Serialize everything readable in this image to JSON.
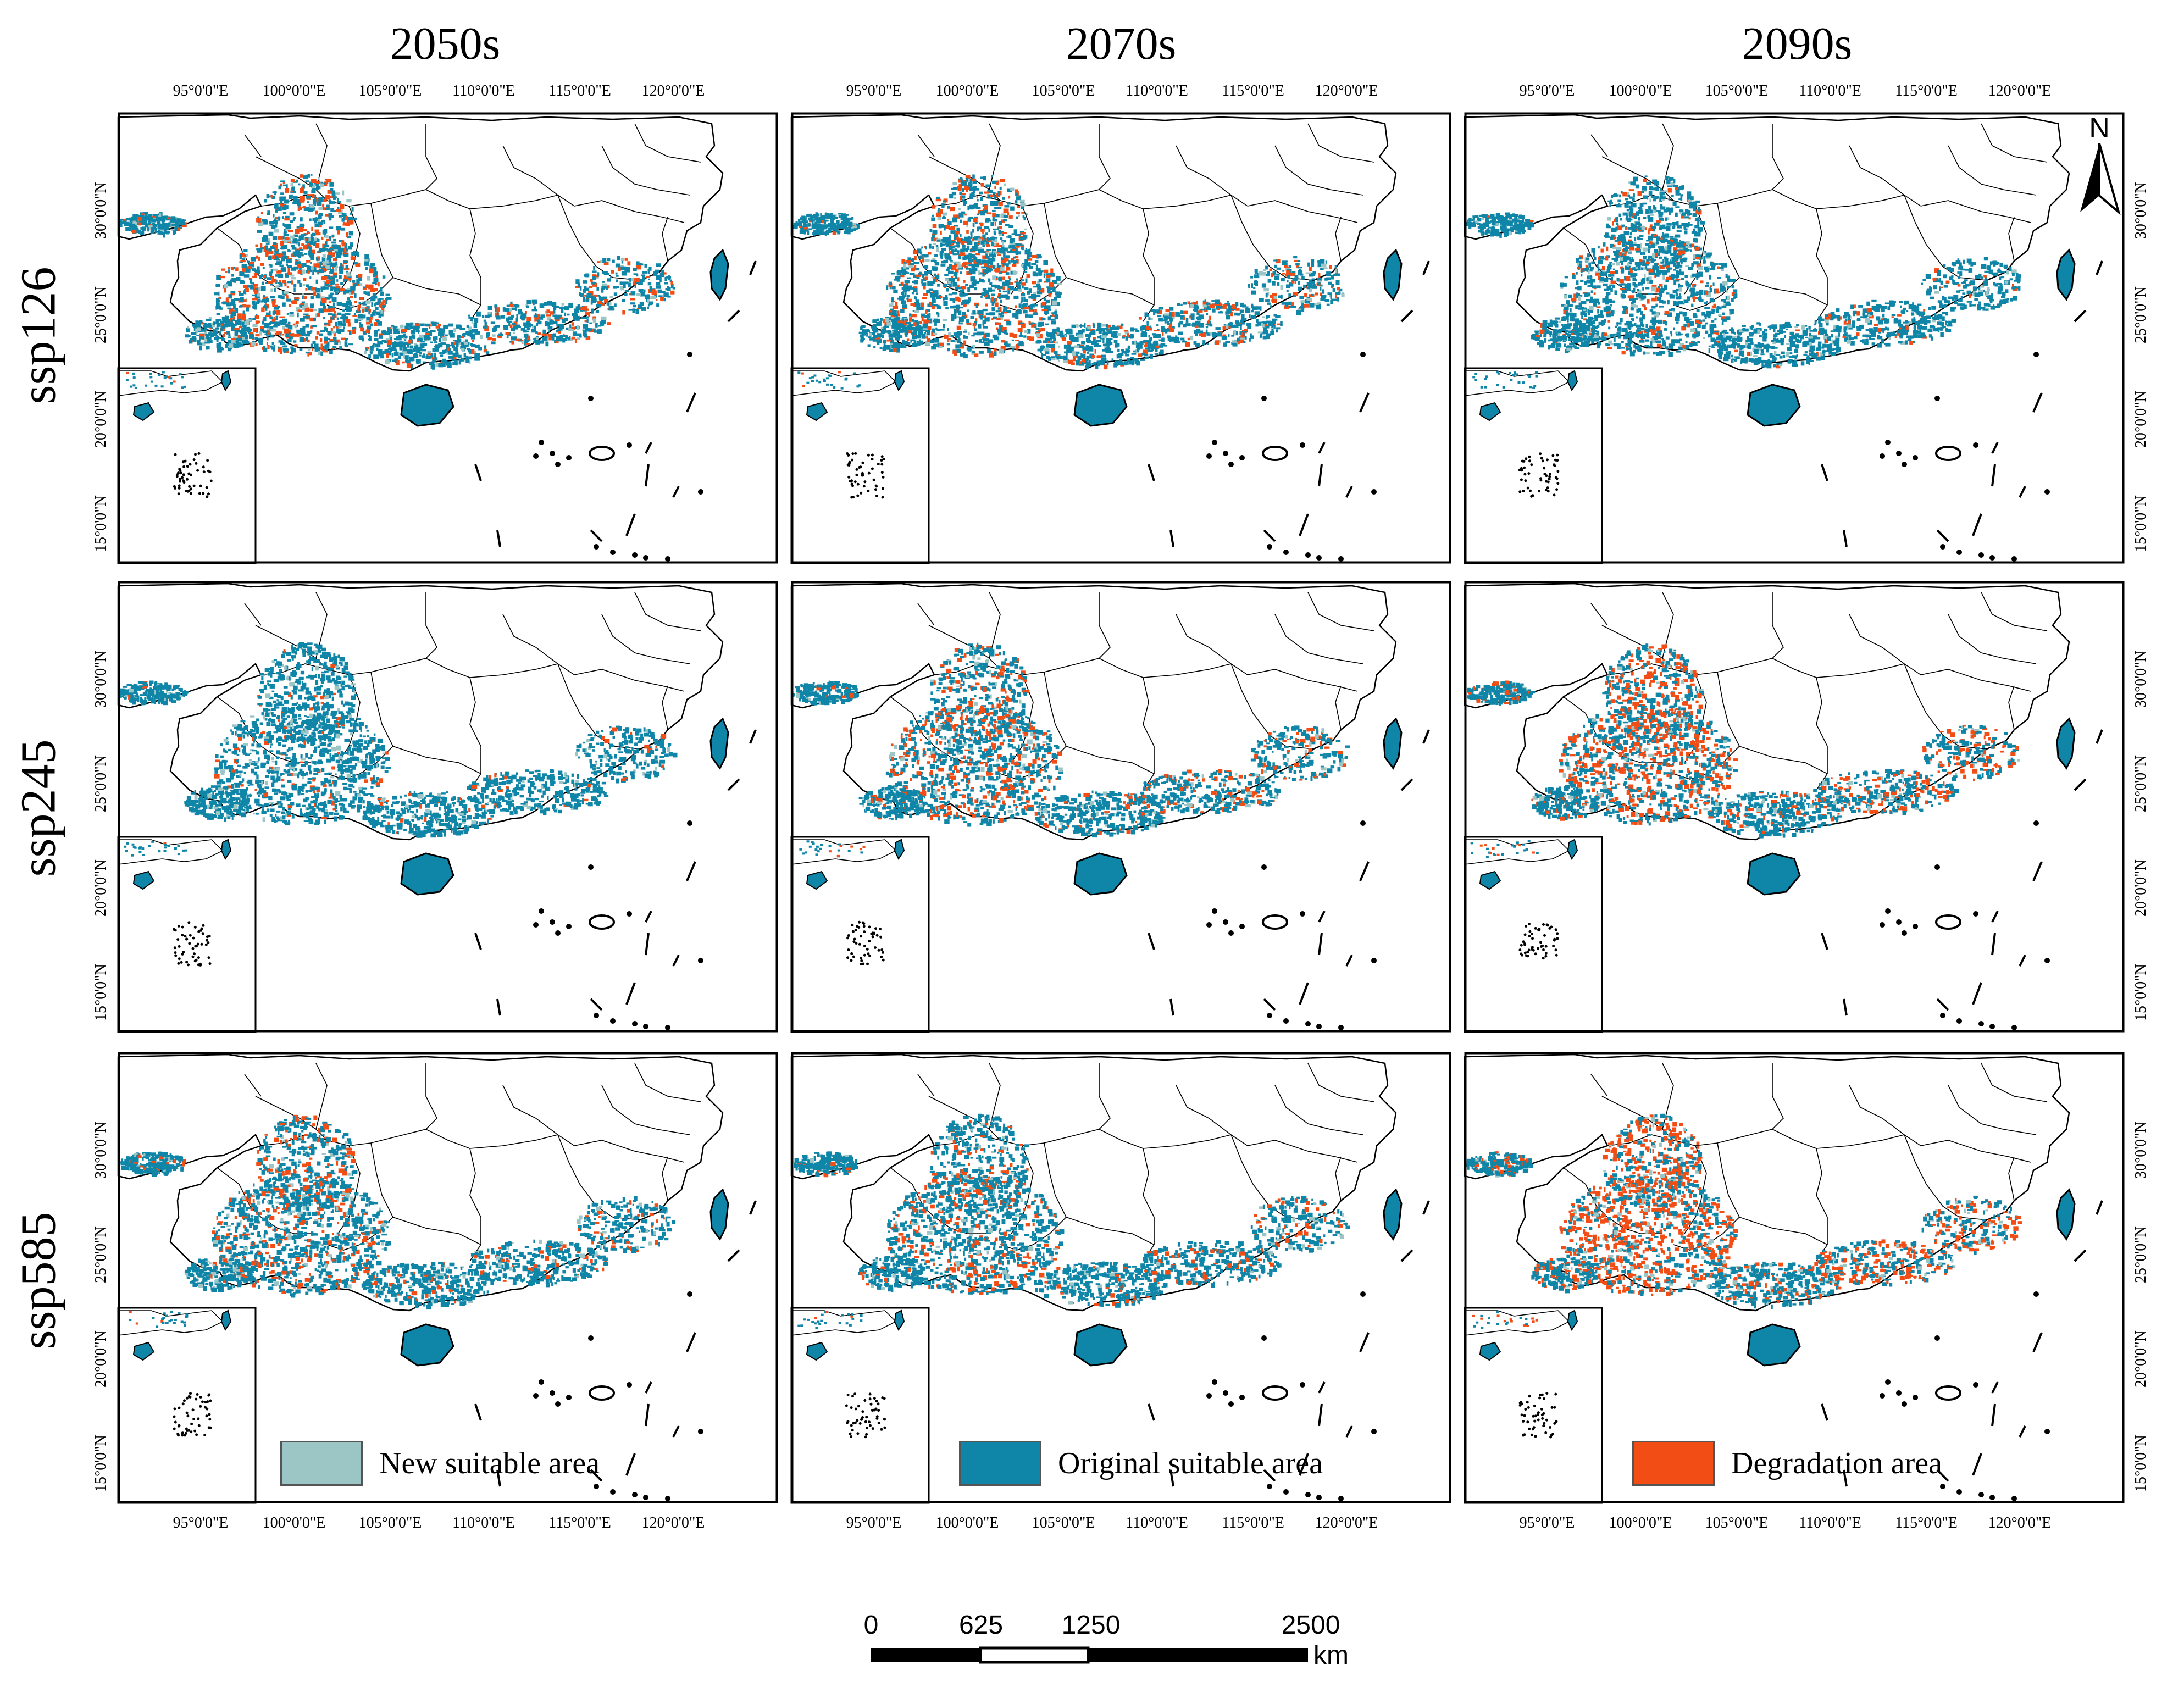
{
  "columns": [
    "2050s",
    "2070s",
    "2090s"
  ],
  "rows": [
    "ssp126",
    "ssp245",
    "ssp585"
  ],
  "lon_ticks": [
    "95°0'0\"E",
    "100°0'0\"E",
    "105°0'0\"E",
    "110°0'0\"E",
    "115°0'0\"E",
    "120°0'0\"E"
  ],
  "lat_ticks": [
    "30°0'0\"N",
    "25°0'0\"N",
    "20°0'0\"N",
    "15°0'0\"N"
  ],
  "north_arrow": "N",
  "legend": [
    {
      "label": "New suitable area",
      "color": "#9cc5c5"
    },
    {
      "label": "Original suitable area",
      "color": "#0f86a8"
    },
    {
      "label": "Degradation area",
      "color": "#f24d15"
    }
  ],
  "scale_bar": {
    "labels": [
      "0",
      "625",
      "1250",
      "2500"
    ],
    "unit": "km"
  },
  "degradation_level": [
    [
      0.55,
      0.45,
      0.2
    ],
    [
      0.1,
      0.5,
      0.75
    ],
    [
      0.4,
      0.4,
      1.0
    ]
  ],
  "colors": {
    "original": "#0f86a8",
    "new": "#9cc5c5",
    "degradation": "#f24d15",
    "border": "#000000"
  }
}
